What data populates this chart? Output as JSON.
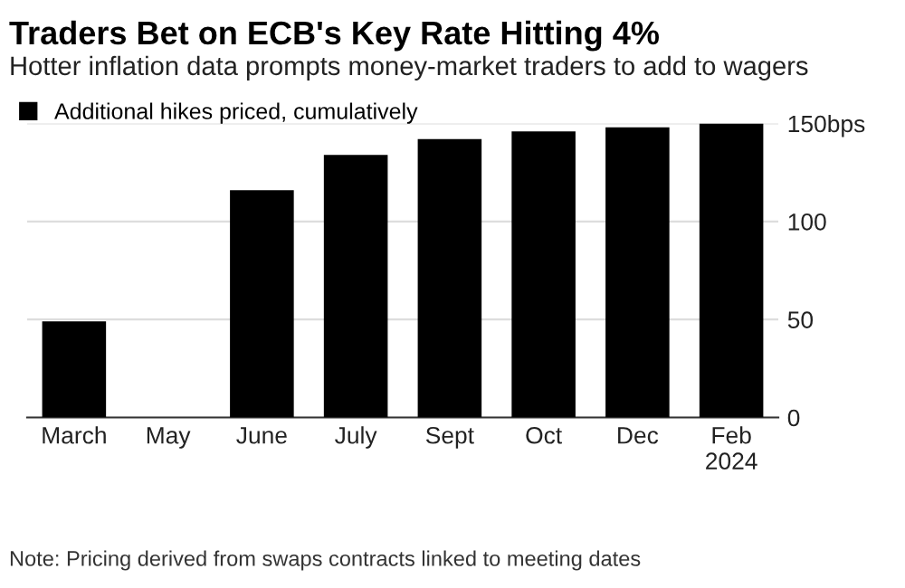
{
  "chart_data": {
    "type": "bar",
    "title": "Traders Bet on ECB's Key Rate Hitting 4%",
    "subtitle": "Hotter inflation data prompts money-market traders to add to wagers",
    "categories": [
      "March",
      "May",
      "June",
      "July",
      "Sept",
      "Oct",
      "Dec",
      "Feb\n2024"
    ],
    "series": [
      {
        "name": "Additional hikes priced, cumulatively",
        "color": "#000000",
        "values": [
          49,
          null,
          116,
          134,
          142,
          146,
          148,
          150
        ]
      }
    ],
    "ylim": [
      0,
      150
    ],
    "yticks": [
      0,
      50,
      100,
      {
        "value": 150,
        "label": "150bps"
      }
    ],
    "grid": "y",
    "legend": "top left",
    "annotations": [
      "Note: Pricing derived from swaps contracts linked to meeting dates"
    ]
  }
}
